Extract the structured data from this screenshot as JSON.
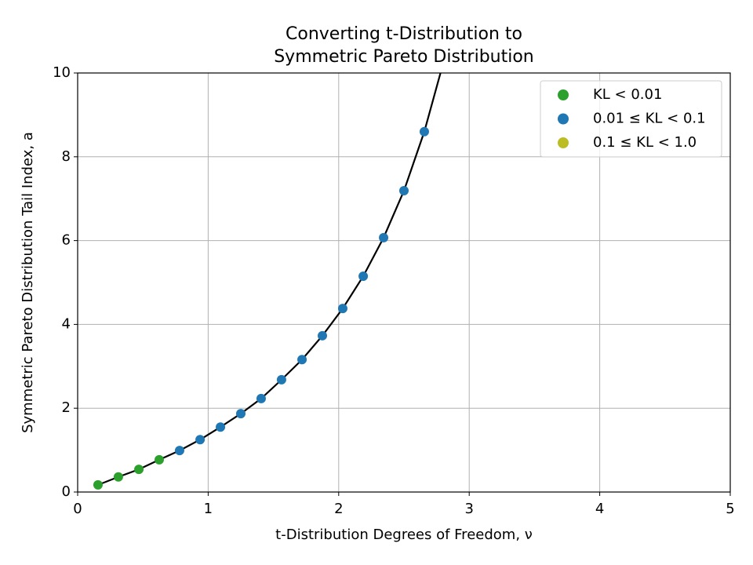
{
  "chart_data": {
    "type": "scatter",
    "title": [
      "Converting t-Distribution to",
      "Symmetric Pareto Distribution"
    ],
    "xlabel": "t-Distribution Degrees of Freedom, ν",
    "ylabel": "Symmetric Pareto Distribution Tail Index, a",
    "xlim": [
      0,
      5
    ],
    "ylim": [
      0,
      10
    ],
    "xticks": [
      0,
      1,
      2,
      3,
      4,
      5
    ],
    "yticks": [
      0,
      2,
      4,
      6,
      8,
      10
    ],
    "grid": true,
    "legend": "upper right",
    "series": [
      {
        "name": "KL < 0.01",
        "color": "#2ca02c",
        "x": [
          0.156,
          0.312,
          0.469,
          0.625
        ],
        "y": [
          0.17,
          0.36,
          0.54,
          0.77
        ]
      },
      {
        "name": "0.01 ≤ KL < 0.1",
        "color": "#1f77b4",
        "x": [
          0.781,
          0.938,
          1.094,
          1.25,
          1.406,
          1.562,
          1.719,
          1.875,
          2.031,
          2.188,
          2.344,
          2.5,
          2.656
        ],
        "y": [
          0.99,
          1.25,
          1.55,
          1.87,
          2.23,
          2.68,
          3.16,
          3.73,
          4.38,
          5.15,
          6.07,
          7.19,
          8.6
        ]
      },
      {
        "name": "0.1 ≤ KL < 1.0",
        "color": "#bcbd22",
        "x": [],
        "y": []
      }
    ],
    "curve": {
      "color": "#000000",
      "x": [
        0.156,
        0.312,
        0.469,
        0.625,
        0.781,
        0.938,
        1.094,
        1.25,
        1.406,
        1.562,
        1.719,
        1.875,
        2.031,
        2.188,
        2.344,
        2.5,
        2.656,
        2.78
      ],
      "y": [
        0.17,
        0.36,
        0.54,
        0.77,
        0.99,
        1.25,
        1.55,
        1.87,
        2.23,
        2.68,
        3.16,
        3.73,
        4.38,
        5.15,
        6.07,
        7.19,
        8.6,
        10
      ]
    }
  }
}
